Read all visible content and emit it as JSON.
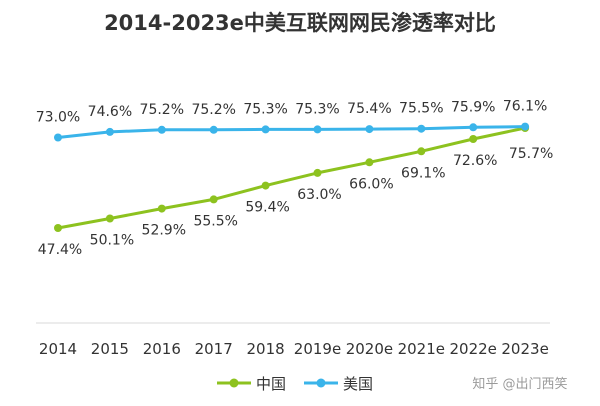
{
  "chart_data": {
    "type": "line",
    "title": "2014-2023e中美互联网网民渗透率对比",
    "categories": [
      "2014",
      "2015",
      "2016",
      "2017",
      "2018",
      "2019e",
      "2020e",
      "2021e",
      "2022e",
      "2023e"
    ],
    "series": [
      {
        "name": "中国",
        "color": "#8dc21f",
        "values": [
          47.4,
          50.1,
          52.9,
          55.5,
          59.4,
          63.0,
          66.0,
          69.1,
          72.6,
          75.7
        ],
        "labels": [
          "47.4%",
          "50.1%",
          "52.9%",
          "55.5%",
          "59.4%",
          "63.0%",
          "66.0%",
          "69.1%",
          "72.6%",
          "75.7%"
        ]
      },
      {
        "name": "美国",
        "color": "#3ab4ea",
        "values": [
          73.0,
          74.6,
          75.2,
          75.2,
          75.3,
          75.3,
          75.4,
          75.5,
          75.9,
          76.1
        ],
        "labels": [
          "73.0%",
          "74.6%",
          "75.2%",
          "75.2%",
          "75.3%",
          "75.3%",
          "75.4%",
          "75.5%",
          "75.9%",
          "76.1%"
        ]
      }
    ],
    "xlabel": "",
    "ylabel": "",
    "ylim": [
      40,
      80
    ],
    "grid": false,
    "legend_position": "bottom"
  },
  "watermark": "知乎 @出门西笑"
}
